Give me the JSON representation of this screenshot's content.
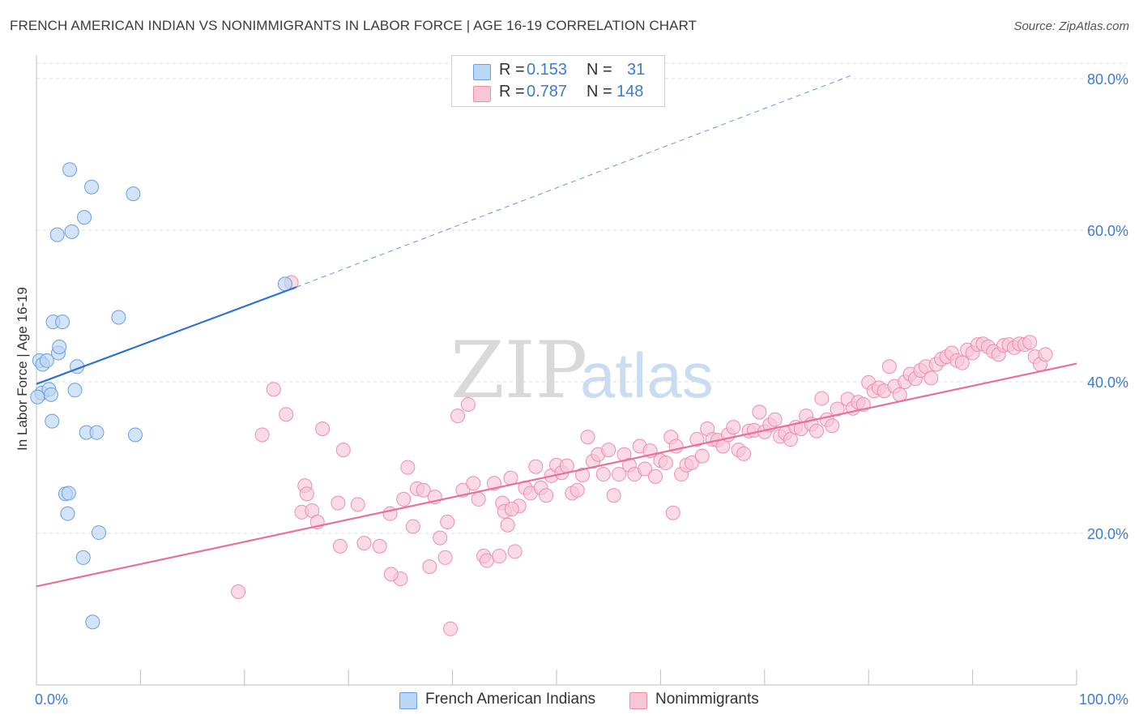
{
  "header": {
    "title": "FRENCH AMERICAN INDIAN VS NONIMMIGRANTS IN LABOR FORCE | AGE 16-19 CORRELATION CHART",
    "source": "Source: ZipAtlas.com"
  },
  "watermark": {
    "zip": "ZIP",
    "atlas": "atlas"
  },
  "legend": {
    "rows": [
      {
        "r_label": "R =",
        "r_value": "0.153",
        "n_label": "N =",
        "n_value": "31"
      },
      {
        "r_label": "R =",
        "r_value": "0.787",
        "n_label": "N =",
        "n_value": "148"
      }
    ]
  },
  "bottom_legend": {
    "series1": "French American Indians",
    "series2": "Nonimmigrants"
  },
  "colors": {
    "blue_fill": "#bcd6f5",
    "blue_stroke": "#6b9ee0",
    "blue_line": "#2d72d2",
    "pink_fill": "#f8c6d5",
    "pink_stroke": "#ec8fab",
    "pink_line": "#e8709a",
    "tick_label": "#3d7bd1",
    "grid": "#dddddd"
  },
  "chart_data": {
    "type": "scatter",
    "title": "FRENCH AMERICAN INDIAN VS NONIMMIGRANTS IN LABOR FORCE | AGE 16-19 CORRELATION CHART",
    "xlabel": "",
    "ylabel": "In Labor Force | Age 16-19",
    "xlim": [
      0,
      100
    ],
    "ylim": [
      0,
      80
    ],
    "x_tick_labels": [
      "0.0%",
      "100.0%"
    ],
    "y_ticks": [
      20,
      40,
      60,
      80
    ],
    "y_tick_labels": [
      "20.0%",
      "40.0%",
      "60.0%",
      "80.0%"
    ],
    "grid": true,
    "legend_position": "top-center",
    "series": [
      {
        "name": "French American Indians",
        "R": 0.153,
        "N": 31,
        "trend": {
          "x": [
            0,
            25
          ],
          "y": [
            39.7,
            52.5
          ],
          "extended_to": [
            78.5,
            80.5
          ]
        },
        "points": [
          [
            0.3,
            42.8
          ],
          [
            0.5,
            38.5
          ],
          [
            0.6,
            42.3
          ],
          [
            1.0,
            42.8
          ],
          [
            1.2,
            39.0
          ],
          [
            1.4,
            38.3
          ],
          [
            1.5,
            34.8
          ],
          [
            1.6,
            47.9
          ],
          [
            2.0,
            59.4
          ],
          [
            2.1,
            43.8
          ],
          [
            2.2,
            44.6
          ],
          [
            2.5,
            47.9
          ],
          [
            2.8,
            25.2
          ],
          [
            3.0,
            22.6
          ],
          [
            3.1,
            25.3
          ],
          [
            3.2,
            68.0
          ],
          [
            3.4,
            59.8
          ],
          [
            3.7,
            38.9
          ],
          [
            3.9,
            42.0
          ],
          [
            4.5,
            16.8
          ],
          [
            4.6,
            61.7
          ],
          [
            4.8,
            33.3
          ],
          [
            5.3,
            65.7
          ],
          [
            5.4,
            8.3
          ],
          [
            5.8,
            33.3
          ],
          [
            6.0,
            20.1
          ],
          [
            7.9,
            48.5
          ],
          [
            9.3,
            64.8
          ],
          [
            9.5,
            33.0
          ],
          [
            23.9,
            52.9
          ],
          [
            0.1,
            38.0
          ]
        ]
      },
      {
        "name": "Nonimmigrants",
        "R": 0.787,
        "N": 148,
        "trend": {
          "x": [
            0,
            100
          ],
          "y": [
            13.0,
            42.4
          ]
        },
        "points": [
          [
            19.4,
            12.3
          ],
          [
            21.7,
            33.0
          ],
          [
            22.8,
            39.0
          ],
          [
            24.0,
            35.7
          ],
          [
            24.5,
            53.1
          ],
          [
            25.5,
            22.8
          ],
          [
            25.8,
            26.3
          ],
          [
            26.0,
            25.2
          ],
          [
            26.5,
            23.0
          ],
          [
            27.0,
            21.5
          ],
          [
            27.5,
            33.8
          ],
          [
            29.0,
            24.0
          ],
          [
            29.2,
            18.3
          ],
          [
            29.5,
            31.0
          ],
          [
            30.9,
            23.8
          ],
          [
            31.5,
            18.7
          ],
          [
            33.0,
            18.3
          ],
          [
            34.0,
            22.6
          ],
          [
            35.0,
            14.0
          ],
          [
            35.3,
            24.5
          ],
          [
            35.7,
            28.7
          ],
          [
            36.2,
            20.9
          ],
          [
            36.6,
            25.9
          ],
          [
            37.2,
            25.7
          ],
          [
            37.8,
            15.6
          ],
          [
            38.3,
            24.8
          ],
          [
            38.8,
            19.4
          ],
          [
            39.3,
            16.8
          ],
          [
            39.5,
            21.5
          ],
          [
            39.8,
            7.4
          ],
          [
            40.5,
            35.5
          ],
          [
            41.0,
            25.7
          ],
          [
            41.5,
            37.0
          ],
          [
            42.0,
            26.6
          ],
          [
            42.5,
            24.5
          ],
          [
            43.0,
            17.0
          ],
          [
            43.3,
            16.4
          ],
          [
            44.0,
            26.6
          ],
          [
            44.5,
            17.0
          ],
          [
            44.8,
            24.0
          ],
          [
            45.0,
            22.9
          ],
          [
            45.3,
            21.1
          ],
          [
            45.6,
            27.3
          ],
          [
            46.0,
            17.6
          ],
          [
            46.4,
            23.6
          ],
          [
            47.0,
            26.0
          ],
          [
            47.5,
            25.3
          ],
          [
            48.0,
            28.8
          ],
          [
            48.5,
            26.0
          ],
          [
            49.0,
            25.0
          ],
          [
            49.5,
            27.6
          ],
          [
            50.0,
            29.0
          ],
          [
            50.5,
            28.0
          ],
          [
            51.0,
            28.9
          ],
          [
            51.5,
            25.3
          ],
          [
            52.0,
            25.7
          ],
          [
            52.5,
            27.7
          ],
          [
            53.0,
            32.7
          ],
          [
            53.5,
            29.5
          ],
          [
            54.0,
            30.4
          ],
          [
            54.5,
            27.8
          ],
          [
            55.0,
            31.0
          ],
          [
            55.5,
            25.0
          ],
          [
            56.0,
            27.8
          ],
          [
            56.5,
            30.4
          ],
          [
            57.0,
            29.0
          ],
          [
            57.5,
            27.8
          ],
          [
            58.0,
            31.5
          ],
          [
            58.5,
            28.5
          ],
          [
            59.0,
            30.9
          ],
          [
            59.5,
            27.5
          ],
          [
            60.0,
            29.6
          ],
          [
            60.5,
            29.3
          ],
          [
            61.0,
            32.7
          ],
          [
            61.5,
            31.5
          ],
          [
            62.0,
            27.8
          ],
          [
            62.5,
            29.0
          ],
          [
            63.0,
            29.3
          ],
          [
            63.5,
            32.4
          ],
          [
            64.0,
            30.2
          ],
          [
            64.5,
            33.8
          ],
          [
            65.0,
            32.4
          ],
          [
            65.5,
            32.3
          ],
          [
            66.0,
            31.5
          ],
          [
            66.5,
            33.0
          ],
          [
            67.0,
            34.0
          ],
          [
            67.5,
            31.0
          ],
          [
            68.0,
            30.5
          ],
          [
            68.5,
            33.5
          ],
          [
            69.0,
            33.6
          ],
          [
            69.5,
            36.0
          ],
          [
            70.0,
            33.4
          ],
          [
            70.5,
            34.3
          ],
          [
            71.0,
            35.0
          ],
          [
            71.5,
            32.8
          ],
          [
            72.0,
            33.2
          ],
          [
            72.5,
            32.4
          ],
          [
            73.0,
            34.0
          ],
          [
            73.5,
            33.8
          ],
          [
            74.0,
            35.5
          ],
          [
            74.5,
            34.4
          ],
          [
            75.0,
            33.5
          ],
          [
            75.5,
            37.8
          ],
          [
            76.0,
            35.0
          ],
          [
            76.5,
            34.2
          ],
          [
            77.0,
            36.4
          ],
          [
            78.0,
            37.7
          ],
          [
            78.5,
            36.5
          ],
          [
            79.0,
            37.3
          ],
          [
            79.5,
            37.0
          ],
          [
            80.0,
            39.9
          ],
          [
            80.5,
            38.8
          ],
          [
            81.0,
            39.2
          ],
          [
            81.5,
            38.8
          ],
          [
            82.0,
            42.0
          ],
          [
            82.5,
            39.4
          ],
          [
            83.0,
            38.3
          ],
          [
            83.5,
            40.0
          ],
          [
            84.0,
            41.0
          ],
          [
            84.5,
            40.4
          ],
          [
            85.0,
            41.5
          ],
          [
            85.5,
            42.0
          ],
          [
            86.0,
            40.5
          ],
          [
            86.5,
            42.3
          ],
          [
            87.0,
            43.0
          ],
          [
            87.5,
            43.3
          ],
          [
            88.0,
            43.8
          ],
          [
            88.5,
            42.8
          ],
          [
            89.0,
            42.5
          ],
          [
            89.5,
            44.2
          ],
          [
            90.0,
            43.8
          ],
          [
            90.5,
            44.9
          ],
          [
            91.0,
            45.0
          ],
          [
            91.5,
            44.6
          ],
          [
            92.0,
            44.0
          ],
          [
            92.5,
            43.6
          ],
          [
            93.0,
            44.8
          ],
          [
            93.5,
            44.9
          ],
          [
            94.0,
            44.5
          ],
          [
            94.5,
            45.0
          ],
          [
            95.0,
            44.9
          ],
          [
            95.5,
            45.2
          ],
          [
            96.0,
            43.3
          ],
          [
            96.5,
            42.3
          ],
          [
            97.0,
            43.6
          ],
          [
            45.7,
            23.2
          ],
          [
            34.1,
            14.6
          ],
          [
            61.2,
            22.7
          ]
        ]
      }
    ]
  }
}
